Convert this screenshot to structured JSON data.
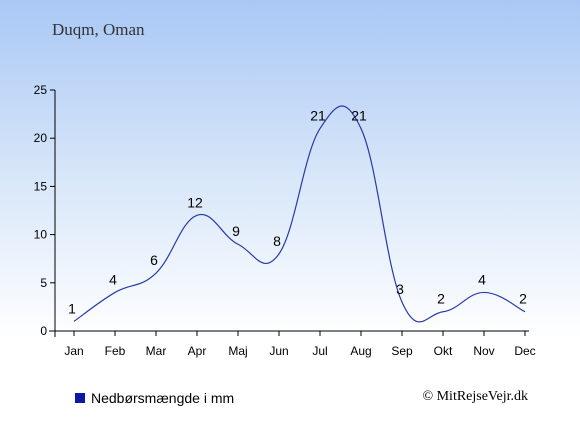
{
  "header": {
    "title": "Duqm, Oman"
  },
  "legend": {
    "label": "Nedbørsmængde i mm"
  },
  "footer": {
    "credit": "© MitRejseVejr.dk"
  },
  "colors": {
    "line": "#2a3aa8",
    "swatch": "#0a1aa6"
  },
  "chart_data": {
    "type": "line",
    "categories": [
      "Jan",
      "Feb",
      "Mar",
      "Apr",
      "Maj",
      "Jun",
      "Jul",
      "Aug",
      "Sep",
      "Okt",
      "Nov",
      "Dec"
    ],
    "series": [
      {
        "name": "Nedbørsmængde i mm",
        "values": [
          1,
          4,
          6,
          12,
          9,
          8,
          21,
          21,
          3,
          2,
          4,
          2
        ]
      }
    ],
    "ylim": [
      0,
      25
    ],
    "yticks": [
      0,
      5,
      10,
      15,
      20,
      25
    ],
    "grid": false,
    "legend_position": "bottom-left"
  }
}
